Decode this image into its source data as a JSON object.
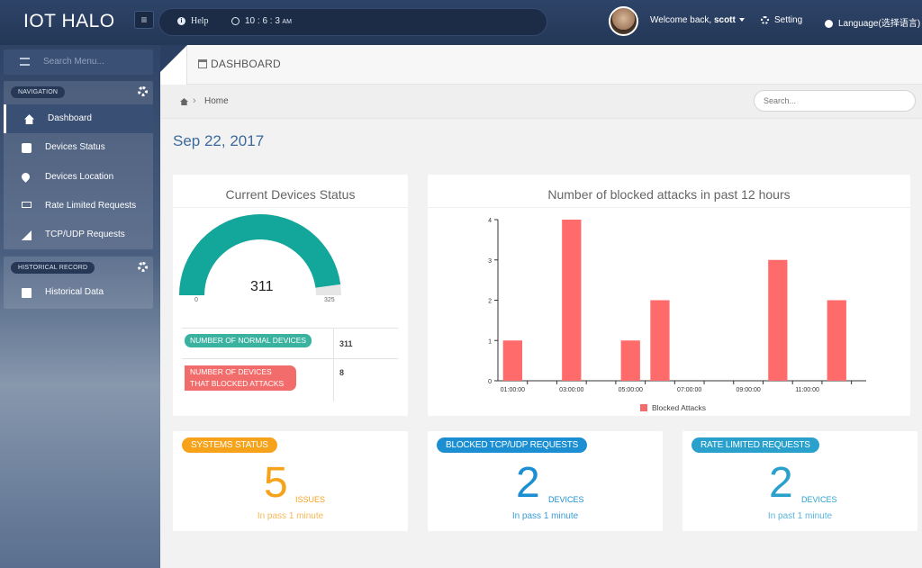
{
  "header": {
    "brand": "IOT HALO",
    "menu_icon": "hamburger-icon",
    "help_label": "Help",
    "time": "10 : 6 : 3",
    "time_suffix": "AM",
    "welcome_prefix": "Welcome back, ",
    "username": "scott",
    "setting_label": "Setting",
    "language_label": "Language(选择语言)"
  },
  "sidebar": {
    "search_placeholder": "Search Menu...",
    "navigation_title": "NAVIGATION",
    "items": [
      {
        "label": "Dashboard",
        "icon": "home-icon"
      },
      {
        "label": "Devices Status",
        "icon": "device-icon"
      },
      {
        "label": "Devices Location",
        "icon": "map-pin-icon"
      },
      {
        "label": "Rate Limited Requests",
        "icon": "laptop-icon"
      },
      {
        "label": "TCP/UDP Requests",
        "icon": "signal-icon"
      }
    ],
    "historical_title": "HISTORICAL RECORD",
    "historical_items": [
      {
        "label": "Historical Data",
        "icon": "book-icon"
      }
    ]
  },
  "page": {
    "title": "DASHBOARD",
    "breadcrumb_home": "Home",
    "search_placeholder": "Search...",
    "date": "Sep 22, 2017"
  },
  "devices_status": {
    "title": "Current Devices Status",
    "gauge_value": 311,
    "gauge_min": "0",
    "gauge_max": "325",
    "gauge_max_value": 325,
    "normal_label": "NUMBER OF NORMAL DEVICES",
    "normal_value": "311",
    "blocked_label": "NUMBER OF DEVICES THAT BLOCKED ATTACKS",
    "blocked_value": "8",
    "colors": {
      "gauge": "#13a69a",
      "track": "#e6e6e6",
      "normal": "#3ab2a0",
      "blocked": "#f26c6c"
    }
  },
  "chart_data": {
    "type": "bar",
    "title": "Number of blocked attacks in past 12 hours",
    "x_tick_labels": [
      "01:00:00",
      "03:00:00",
      "05:00:00",
      "07:00:00",
      "09:00:00",
      "11:00:00"
    ],
    "bars": [
      {
        "hour": 1,
        "value": 1
      },
      {
        "hour": 3,
        "value": 4
      },
      {
        "hour": 5,
        "value": 1
      },
      {
        "hour": 6,
        "value": 2
      },
      {
        "hour": 10,
        "value": 3
      },
      {
        "hour": 12,
        "value": 2
      }
    ],
    "x_range": [
      0.5,
      13
    ],
    "ylim": [
      0,
      4
    ],
    "y_ticks": [
      0,
      1,
      2,
      3,
      4
    ],
    "series": [
      {
        "name": "Blocked Attacks",
        "color": "#ff6b6b"
      }
    ],
    "legend_position": "bottom",
    "grid": false
  },
  "summary": {
    "systems": {
      "badge": "SYSTEMS STATUS",
      "value": "5",
      "unit": "ISSUES",
      "sub": "In pass 1 minute",
      "color": "#f7a21b",
      "sub_color": "#f5b95a"
    },
    "tcp": {
      "badge": "BLOCKED TCP/UDP REQUESTS",
      "value": "2",
      "unit": "DEVICES",
      "sub": "In pass 1 minute",
      "color": "#1b8fd1",
      "sub_color": "#3a9bd5"
    },
    "rate": {
      "badge": "RATE LIMITED REQUESTS",
      "value": "2",
      "unit": "DEVICES",
      "sub": "In past 1 minute",
      "color": "#2aa0cc",
      "sub_color": "#5bb3d8"
    }
  }
}
